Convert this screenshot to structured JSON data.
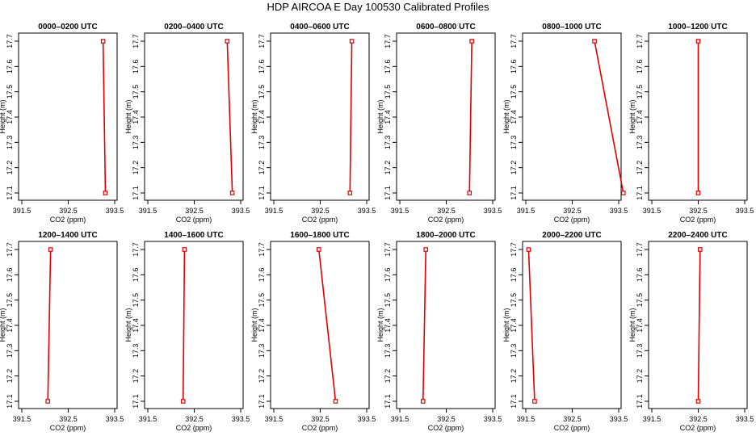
{
  "title": "HDP AIRCOA E  Day 100530  Calibrated Profiles",
  "chart_data": {
    "type": "line",
    "xlabel": "CO2 (ppm)",
    "ylabel": "Height (m)",
    "xlim": [
      391.5,
      393.5
    ],
    "ylim": [
      17.1,
      17.7
    ],
    "x_ticks": [
      "391.5",
      "392.5",
      "393.5"
    ],
    "y_ticks": [
      "17.1",
      "17.2",
      "17.3",
      "17.4",
      "17.5",
      "17.6",
      "17.7"
    ],
    "line_color": "#e00000",
    "panels": [
      {
        "title": "0000–0200 UTC",
        "points": [
          [
            393.3,
            17.1
          ],
          [
            393.25,
            17.7
          ]
        ]
      },
      {
        "title": "0200–0400 UTC",
        "points": [
          [
            393.32,
            17.1
          ],
          [
            393.21,
            17.7
          ]
        ]
      },
      {
        "title": "0400–0600 UTC",
        "points": [
          [
            393.14,
            17.1
          ],
          [
            393.18,
            17.7
          ]
        ]
      },
      {
        "title": "0600–0800 UTC",
        "points": [
          [
            393.0,
            17.1
          ],
          [
            393.05,
            17.7
          ]
        ]
      },
      {
        "title": "0800–1000 UTC",
        "points": [
          [
            393.6,
            17.1
          ],
          [
            392.98,
            17.7
          ]
        ]
      },
      {
        "title": "1000–1200 UTC",
        "points": [
          [
            392.5,
            17.1
          ],
          [
            392.5,
            17.7
          ]
        ]
      },
      {
        "title": "1200–1400 UTC",
        "points": [
          [
            392.06,
            17.1
          ],
          [
            392.12,
            17.7
          ]
        ]
      },
      {
        "title": "1400–1600 UTC",
        "points": [
          [
            392.26,
            17.1
          ],
          [
            392.29,
            17.7
          ]
        ]
      },
      {
        "title": "1600–1800 UTC",
        "points": [
          [
            392.83,
            17.1
          ],
          [
            392.47,
            17.7
          ]
        ]
      },
      {
        "title": "1800–2000 UTC",
        "points": [
          [
            392.0,
            17.1
          ],
          [
            392.06,
            17.7
          ]
        ]
      },
      {
        "title": "2000–2200 UTC",
        "points": [
          [
            391.69,
            17.1
          ],
          [
            391.56,
            17.7
          ]
        ]
      },
      {
        "title": "2200–2400 UTC",
        "points": [
          [
            392.5,
            17.1
          ],
          [
            392.54,
            17.7
          ]
        ]
      }
    ]
  }
}
